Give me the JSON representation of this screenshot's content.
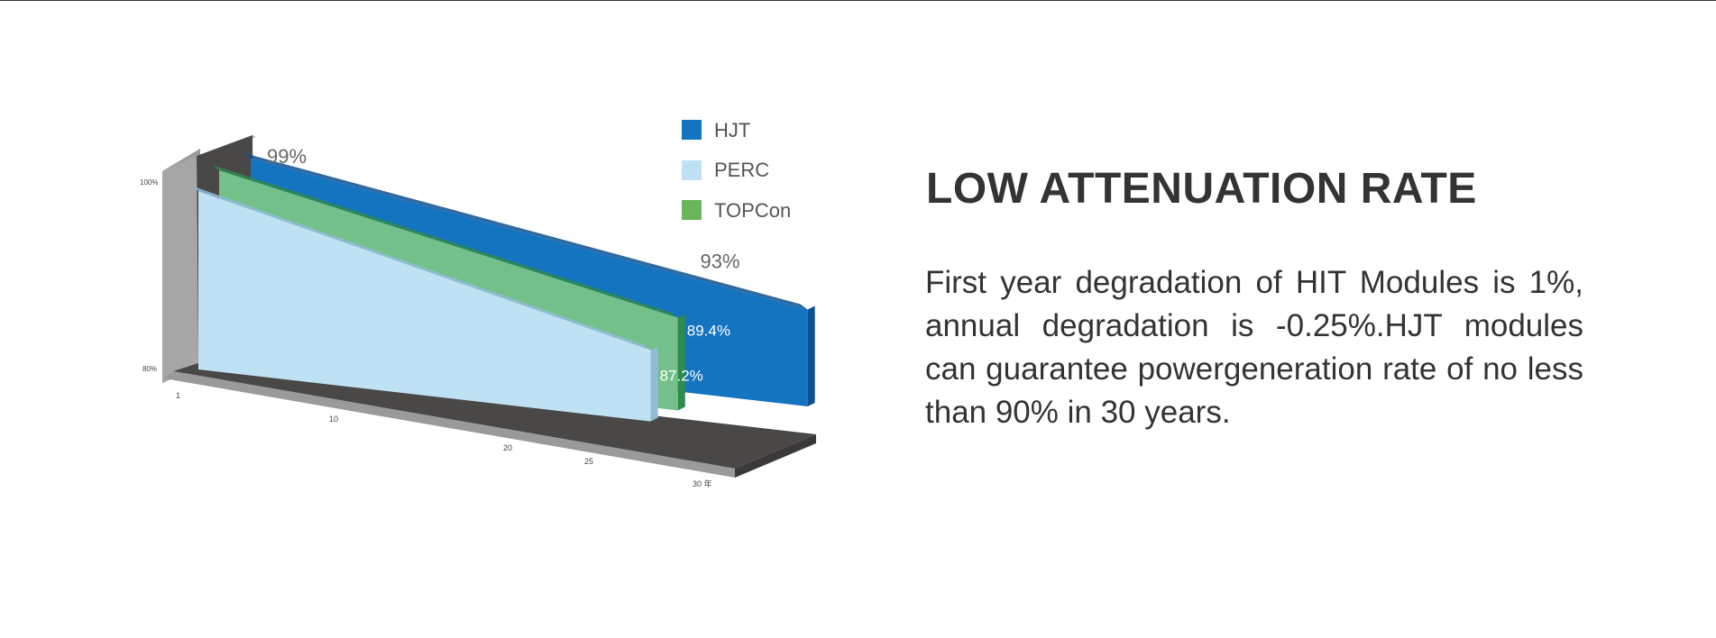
{
  "section": {
    "title": "LOW ATTENUATION RATE",
    "description": "First year degradation of HIT Modules is 1%, annual degradation is -0.25%.HJT modules can guarantee powergeneration rate of no less than 90% in 30 years."
  },
  "chart_data": {
    "type": "area",
    "style": "3d",
    "x_ticks": [
      "1",
      "10",
      "20",
      "25",
      "30 年"
    ],
    "y_ticks": [
      "100%",
      "80%"
    ],
    "ylim": [
      80,
      100
    ],
    "legend": {
      "position": "top-right",
      "entries": [
        "HJT",
        "PERC",
        "TOPCon"
      ]
    },
    "series": [
      {
        "name": "HJT",
        "color": "#1574c0",
        "x": [
          1,
          30
        ],
        "values": [
          99,
          90
        ],
        "start_label": "99%",
        "mid_label": "93%"
      },
      {
        "name": "TOPCon",
        "color": "#74c08a",
        "x": [
          1,
          25
        ],
        "values": [
          99,
          89.4
        ],
        "end_label": "89.4%"
      },
      {
        "name": "PERC",
        "color": "#bfe1f4",
        "x": [
          1,
          25
        ],
        "values": [
          98,
          87.2
        ],
        "end_label": "87.2%"
      }
    ]
  }
}
